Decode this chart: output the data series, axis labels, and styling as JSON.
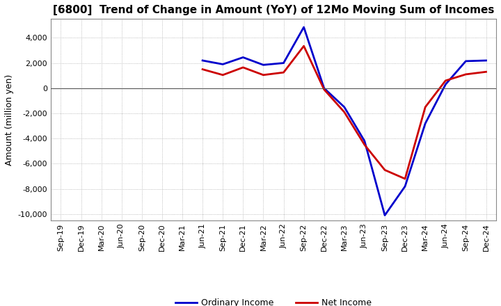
{
  "title": "[6800]  Trend of Change in Amount (YoY) of 12Mo Moving Sum of Incomes",
  "ylabel": "Amount (million yen)",
  "ylim": [
    -10500,
    5500
  ],
  "yticks": [
    -10000,
    -8000,
    -6000,
    -4000,
    -2000,
    0,
    2000,
    4000
  ],
  "background_color": "#ffffff",
  "grid_color": "#aaaaaa",
  "ordinary_income_color": "#0000cc",
  "net_income_color": "#cc0000",
  "line_width": 2.0,
  "x_labels": [
    "Sep-19",
    "Dec-19",
    "Mar-20",
    "Jun-20",
    "Sep-20",
    "Dec-20",
    "Mar-21",
    "Jun-21",
    "Sep-21",
    "Dec-21",
    "Mar-22",
    "Jun-22",
    "Sep-22",
    "Dec-22",
    "Mar-23",
    "Jun-23",
    "Sep-23",
    "Dec-23",
    "Mar-24",
    "Jun-24",
    "Sep-24",
    "Dec-24"
  ],
  "ordinary_income": [
    null,
    null,
    null,
    null,
    null,
    null,
    null,
    2200,
    1900,
    2450,
    1850,
    2000,
    4850,
    0,
    -1500,
    -4200,
    -10100,
    -7800,
    -2800,
    300,
    2150,
    2200
  ],
  "net_income": [
    null,
    null,
    null,
    null,
    null,
    null,
    null,
    1500,
    1050,
    1650,
    1050,
    1250,
    3350,
    -100,
    -1900,
    -4500,
    -6500,
    -7200,
    -1500,
    600,
    1100,
    1300
  ]
}
